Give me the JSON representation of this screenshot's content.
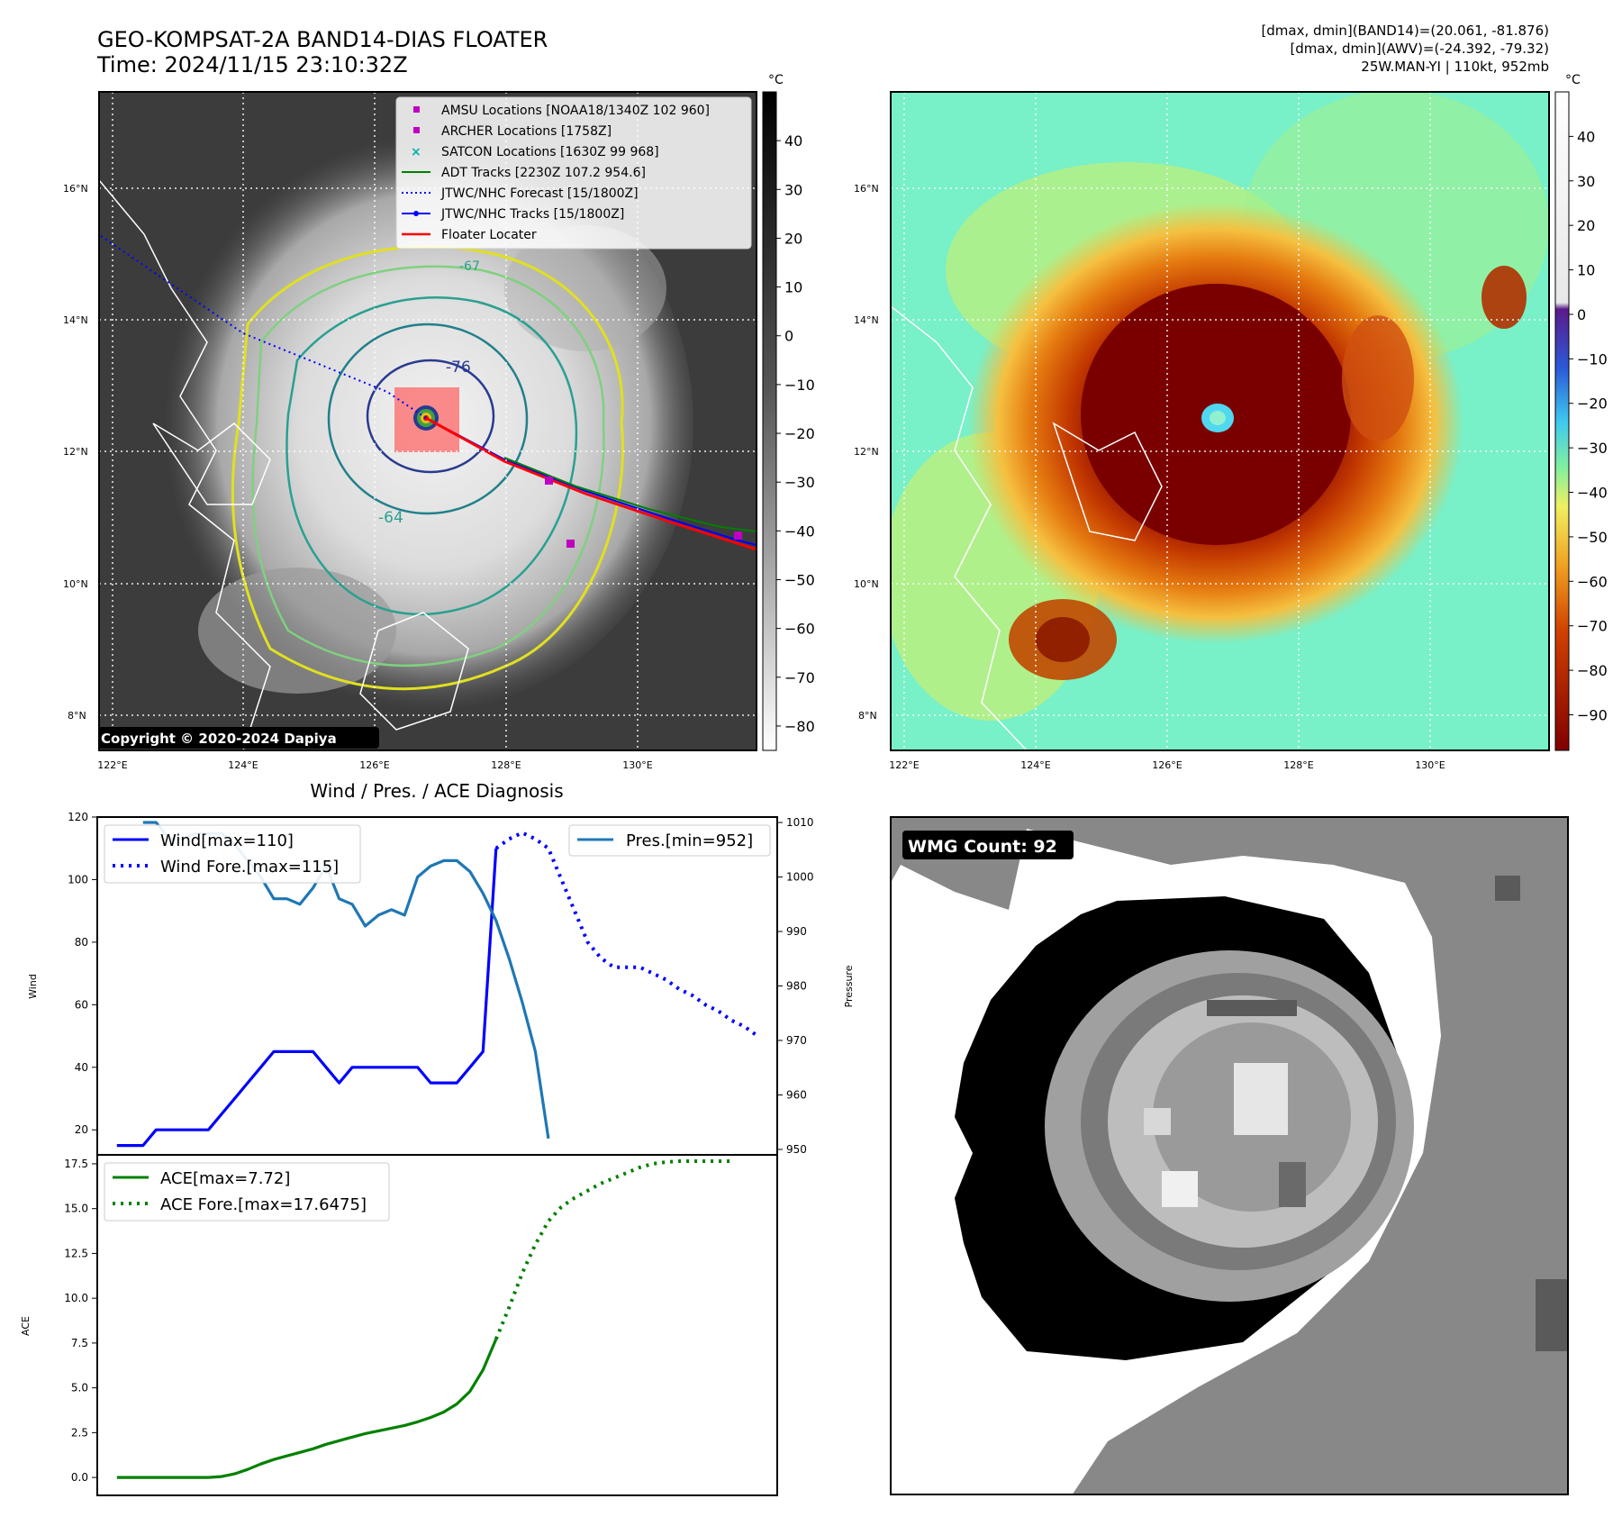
{
  "header": {
    "title_line1": "GEO-KOMPSAT-2A BAND14-DIAS FLOATER",
    "title_line2": "Time: 2024/11/15 23:10:32Z",
    "info_line1": "[dmax, dmin](BAND14)=(20.061, -81.876)",
    "info_line2": "[dmax, dmin](AWV)=(-24.392, -79.32)",
    "info_line3": "25W.MAN-YI | 110kt, 952mb"
  },
  "maps": {
    "lat_labels": [
      "16°N",
      "14°N",
      "12°N",
      "10°N",
      "8°N"
    ],
    "lon_labels": [
      "122°E",
      "124°E",
      "126°E",
      "128°E",
      "130°E"
    ],
    "unit": "°C",
    "copyright": "Copyright © 2020-2024 Dapiya",
    "contour_labels": [
      "-76",
      "-64",
      "-67"
    ],
    "left_colorbar_ticks": [
      "40",
      "30",
      "20",
      "10",
      "0",
      "−10",
      "−20",
      "−30",
      "−40",
      "−50",
      "−60",
      "−70",
      "−80"
    ],
    "right_colorbar_ticks": [
      "40",
      "30",
      "20",
      "10",
      "0",
      "−10",
      "−20",
      "−30",
      "−40",
      "−50",
      "−60",
      "−70",
      "−80",
      "−90"
    ],
    "legend": [
      {
        "label": "AMSU Locations [NOAA18/1340Z 102 960]",
        "color": "#c000c0"
      },
      {
        "label": "ARCHER Locations [1758Z]",
        "color": "#c000c0"
      },
      {
        "label": "SATCON Locations [1630Z 99 968]",
        "color": "#00b0b0"
      },
      {
        "label": "ADT Tracks [2230Z 107.2 954.6]",
        "color": "#008000"
      },
      {
        "label": "JTWC/NHC Forecast [15/1800Z]",
        "color": "#0000ff"
      },
      {
        "label": "JTWC/NHC Tracks [15/1800Z]",
        "color": "#0000ff"
      },
      {
        "label": "Floater Locater",
        "color": "#ff0000"
      }
    ]
  },
  "wmg": {
    "label": "WMG Count: 92"
  },
  "chart_data": [
    {
      "type": "line",
      "title": "Wind / Pres. / ACE Diagnosis",
      "ylabel": "Wind",
      "y2label": "Pressure",
      "ylim": [
        12,
        120
      ],
      "y2lim": [
        949,
        1011
      ],
      "yticks": [
        20,
        40,
        60,
        80,
        100,
        120
      ],
      "y2ticks": [
        950,
        960,
        970,
        980,
        990,
        1000,
        1010
      ],
      "legend_left": [
        "Wind[max=110]",
        "Wind Fore.[max=115]"
      ],
      "legend_right": [
        "Pres.[min=952]"
      ],
      "series": [
        {
          "name": "Wind[max=110]",
          "color": "#0000ff",
          "style": "solid",
          "axis": "left",
          "x": [
            0,
            1,
            2,
            3,
            4,
            5,
            6,
            7,
            8,
            9,
            10,
            11,
            12,
            13,
            14,
            15,
            16,
            17,
            18,
            19,
            20,
            21,
            22,
            23,
            24,
            25,
            26,
            27,
            28,
            29
          ],
          "y": [
            15,
            15,
            15,
            20,
            20,
            20,
            20,
            20,
            25,
            30,
            35,
            40,
            45,
            45,
            45,
            45,
            40,
            35,
            40,
            40,
            40,
            40,
            40,
            40,
            35,
            35,
            35,
            40,
            45,
            110
          ]
        },
        {
          "name": "Wind Fore.[max=115]",
          "color": "#0000ff",
          "style": "dotted",
          "axis": "left",
          "x": [
            29,
            30,
            31,
            32,
            33,
            34,
            35,
            36,
            37,
            38,
            39,
            40,
            41,
            42,
            43,
            44,
            45,
            46,
            47,
            48,
            49
          ],
          "y": [
            110,
            113,
            115,
            113,
            110,
            100,
            90,
            80,
            75,
            72,
            72,
            72,
            70,
            68,
            65,
            63,
            60,
            58,
            55,
            53,
            50
          ]
        },
        {
          "name": "Pres.[min=952]",
          "color": "#1f77b4",
          "style": "solid",
          "axis": "right",
          "x": [
            2,
            3,
            4,
            5,
            6,
            7,
            8,
            9,
            10,
            11,
            12,
            13,
            14,
            15,
            16,
            17,
            18,
            19,
            20,
            21,
            22,
            23,
            24,
            25,
            26,
            27,
            28,
            29,
            30,
            31,
            32,
            33
          ],
          "y": [
            1010,
            1010,
            1007,
            1007,
            1008,
            1008,
            1008,
            1006,
            1003,
            1000,
            996,
            996,
            995,
            998,
            1002,
            996,
            995,
            991,
            993,
            994,
            993,
            1000,
            1002,
            1003,
            1003,
            1001,
            997,
            992,
            985,
            977,
            968,
            952
          ]
        }
      ]
    },
    {
      "type": "line",
      "ylabel": "ACE",
      "ylim": [
        -1,
        18
      ],
      "yticks": [
        0.0,
        2.5,
        5.0,
        7.5,
        10.0,
        12.5,
        15.0,
        17.5
      ],
      "legend": [
        "ACE[max=7.72]",
        "ACE Fore.[max=17.6475]"
      ],
      "series": [
        {
          "name": "ACE[max=7.72]",
          "color": "#008000",
          "style": "solid",
          "x": [
            0,
            1,
            2,
            3,
            4,
            5,
            6,
            7,
            8,
            9,
            10,
            11,
            12,
            13,
            14,
            15,
            16,
            17,
            18,
            19,
            20,
            21,
            22,
            23,
            24,
            25,
            26,
            27,
            28,
            29
          ],
          "y": [
            0,
            0,
            0,
            0,
            0,
            0,
            0,
            0,
            0.05,
            0.2,
            0.45,
            0.75,
            1.0,
            1.2,
            1.4,
            1.6,
            1.85,
            2.05,
            2.25,
            2.45,
            2.6,
            2.75,
            2.9,
            3.1,
            3.35,
            3.65,
            4.1,
            4.8,
            6.0,
            7.72
          ]
        },
        {
          "name": "ACE Fore.[max=17.6475]",
          "color": "#008000",
          "style": "dotted",
          "x": [
            29,
            30,
            31,
            32,
            33,
            34,
            35,
            36,
            37,
            38,
            39,
            40,
            41,
            42,
            43,
            44,
            45,
            46,
            47
          ],
          "y": [
            7.72,
            9.5,
            11.4,
            13.0,
            14.3,
            15.1,
            15.6,
            16.0,
            16.4,
            16.7,
            17.0,
            17.3,
            17.5,
            17.6,
            17.65,
            17.65,
            17.65,
            17.65,
            17.65
          ]
        }
      ]
    }
  ]
}
